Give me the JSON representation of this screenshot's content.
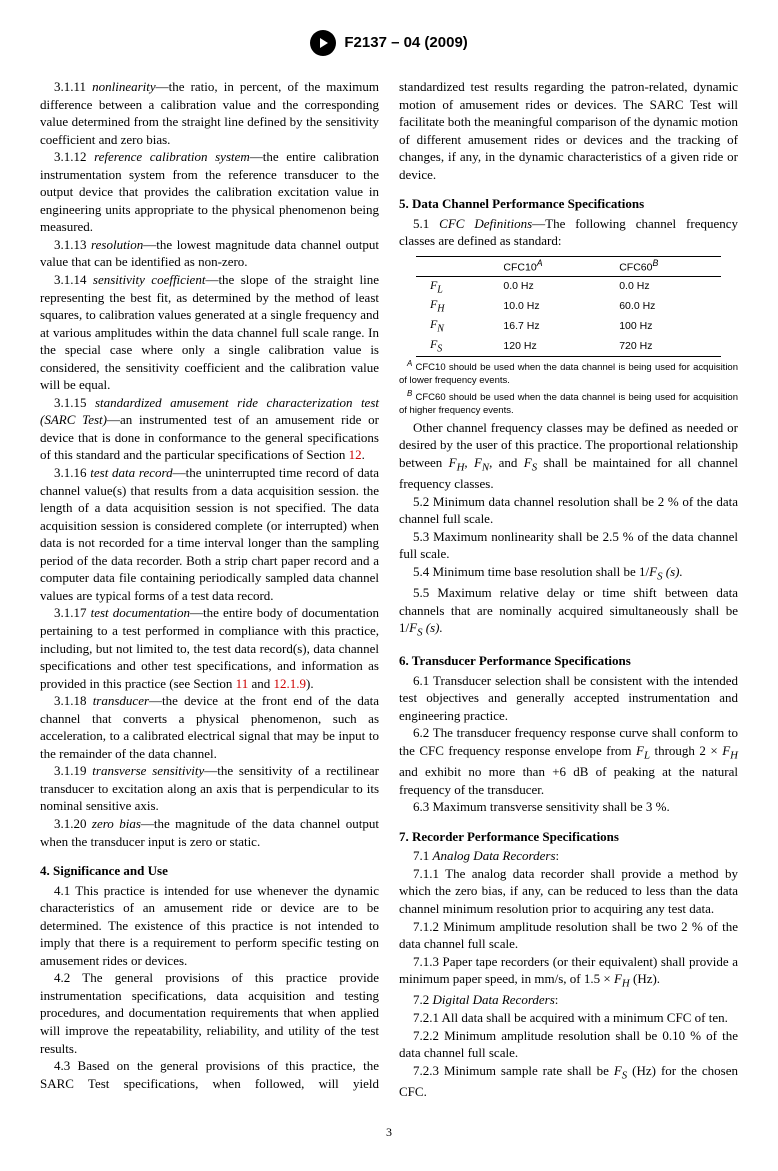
{
  "header": {
    "designation": "F2137 – 04 (2009)"
  },
  "left": {
    "e3_1_11": {
      "num": "3.1.11",
      "term": "nonlinearity",
      "text": "—the ratio, in percent, of the maximum difference between a calibration value and the corresponding value determined from the straight line defined by the sensitivity coefficient and zero bias."
    },
    "e3_1_12": {
      "num": "3.1.12",
      "term": "reference calibration system",
      "text": "—the entire calibration instrumentation system from the reference transducer to the output device that provides the calibration excitation value in engineering units appropriate to the physical phenomenon being measured."
    },
    "e3_1_13": {
      "num": "3.1.13",
      "term": "resolution",
      "text": "—the lowest magnitude data channel output value that can be identified as non-zero."
    },
    "e3_1_14": {
      "num": "3.1.14",
      "term": "sensitivity coefficient",
      "text": "—the slope of the straight line representing the best fit, as determined by the method of least squares, to calibration values generated at a single frequency and at various amplitudes within the data channel full scale range. In the special case where only a single calibration value is considered, the sensitivity coefficient and the calibration value will be equal."
    },
    "e3_1_15": {
      "num": "3.1.15",
      "term": "standardized amusement ride characterization test (SARC Test)",
      "text": "—an instrumented test of an amusement ride or device that is done in conformance to the general specifications of this standard and the particular specifications of Section ",
      "link": "12",
      "tail": "."
    },
    "e3_1_16": {
      "num": "3.1.16",
      "term": "test data record",
      "text": "—the uninterrupted time record of data channel value(s) that results from a data acquisition session. the length of a data acquisition session is not specified. The data acquisition session is considered complete (or interrupted) when data is not recorded for a time interval longer than the sampling period of the data recorder. Both a strip chart paper record and a computer data file containing periodically sampled data channel values are typical forms of a test data record."
    },
    "e3_1_17": {
      "num": "3.1.17",
      "term": "test documentation",
      "text": "—the entire body of documentation pertaining to a test performed in compliance with this practice, including, but not limited to, the test data record(s), data channel specifications and other test specifications, and information as provided in this practice (see Section ",
      "link1": "11",
      "mid": " and ",
      "link2": "12.1.9",
      "tail": ")."
    },
    "e3_1_18": {
      "num": "3.1.18",
      "term": "transducer",
      "text": "—the device at the front end of the data channel that converts a physical phenomenon, such as acceleration, to a calibrated electrical signal that may be input to the remainder of the data channel."
    },
    "e3_1_19": {
      "num": "3.1.19",
      "term": "transverse sensitivity",
      "text": "—the sensitivity of a rectilinear transducer to excitation along an axis that is perpendicular to its nominal sensitive axis."
    },
    "e3_1_20": {
      "num": "3.1.20",
      "term": "zero bias",
      "text": "—the magnitude of the data channel output when the transducer input is zero or static."
    },
    "s4": {
      "head": "4.  Significance and Use",
      "p4_1": "4.1  This practice is intended for use whenever the dynamic characteristics of an amusement ride or device are to be determined. The existence of this practice is not intended to imply that there is a requirement to perform specific testing on amusement rides or devices.",
      "p4_2": "4.2  The general provisions of this practice provide instrumentation specifications, data acquisition and testing procedures, and documentation requirements that when applied will improve the repeatability, reliability, and utility of the test results."
    }
  },
  "right": {
    "p4_3": "4.3  Based on the general provisions of this practice, the SARC Test specifications, when followed, will yield standardized test results regarding the patron-related, dynamic motion of amusement rides or devices. The SARC Test will facilitate both the meaningful comparison of the dynamic motion of different amusement rides or devices and the tracking of changes, if any, in the dynamic characteristics of a given ride or device.",
    "s5": {
      "head": "5.  Data Channel Performance Specifications",
      "p5_1_a": "5.1 ",
      "p5_1_term": "CFC Definitions",
      "p5_1_b": "—The following channel frequency classes are defined as standard:",
      "table": {
        "h1": "CFC10",
        "h1sup": "A",
        "h2": "CFC60",
        "h2sup": "B",
        "rows": [
          {
            "sym": "F",
            "sub": "L",
            "c1": "0.0 Hz",
            "c2": "0.0 Hz"
          },
          {
            "sym": "F",
            "sub": "H",
            "c1": "10.0 Hz",
            "c2": "60.0 Hz"
          },
          {
            "sym": "F",
            "sub": "N",
            "c1": "16.7 Hz",
            "c2": "100 Hz"
          },
          {
            "sym": "F",
            "sub": "S",
            "c1": "120 Hz",
            "c2": "720 Hz"
          }
        ]
      },
      "fnA": " CFC10 should be used when the data channel is being used for acquisition of lower frequency events.",
      "fnB": " CFC60 should be used when the data channel is being used for acquisition of higher frequency events.",
      "p_other_a": "Other channel frequency classes may be defined as needed or desired by the user of this practice. The proportional relationship between ",
      "p_other_b": " shall be maintained for all channel frequency classes.",
      "p5_2": "5.2  Minimum data channel resolution shall be 2 % of the data channel full scale.",
      "p5_3": "5.3  Maximum nonlinearity shall be 2.5 % of the data channel full scale.",
      "p5_4_a": "5.4  Minimum time base resolution shall be 1/",
      "p5_4_b": " (s).",
      "p5_5_a": "5.5  Maximum relative delay or time shift between data channels that are nominally acquired simultaneously shall be 1/",
      "p5_5_b": " (s)."
    },
    "s6": {
      "head": "6.  Transducer Performance Specifications",
      "p6_1": "6.1  Transducer selection shall be consistent with the intended test objectives and generally accepted instrumentation and engineering practice.",
      "p6_2_a": "6.2  The transducer frequency response curve shall conform to the CFC frequency response envelope from ",
      "p6_2_b": " through 2 × ",
      "p6_2_c": " and exhibit no more than +6 dB of peaking at the natural frequency of the transducer.",
      "p6_3": "6.3  Maximum transverse sensitivity shall be 3 %."
    },
    "s7": {
      "head": "7.  Recorder Performance Specifications",
      "p7_1": "7.1  ",
      "p7_1_term": "Analog Data Recorders",
      "p7_1_tail": ":",
      "p7_1_1": "7.1.1  The analog data recorder shall provide a method by which the zero bias, if any, can be reduced to less than the data channel minimum resolution prior to acquiring any test data.",
      "p7_1_2": "7.1.2  Minimum amplitude resolution shall be two 2 % of the data channel full scale.",
      "p7_1_3_a": "7.1.3  Paper tape recorders (or their equivalent) shall provide a minimum paper speed, in mm/s, of 1.5 × ",
      "p7_1_3_b": " (Hz).",
      "p7_2": "7.2  ",
      "p7_2_term": "Digital Data Recorders",
      "p7_2_tail": ":",
      "p7_2_1": "7.2.1  All data shall be acquired with a minimum CFC of ten.",
      "p7_2_2": "7.2.2  Minimum amplitude resolution shall be 0.10 % of the data channel full scale.",
      "p7_2_3_a": "7.2.3  Minimum sample rate shall be ",
      "p7_2_3_b": " (Hz) for the chosen CFC."
    }
  },
  "pagenum": "3"
}
